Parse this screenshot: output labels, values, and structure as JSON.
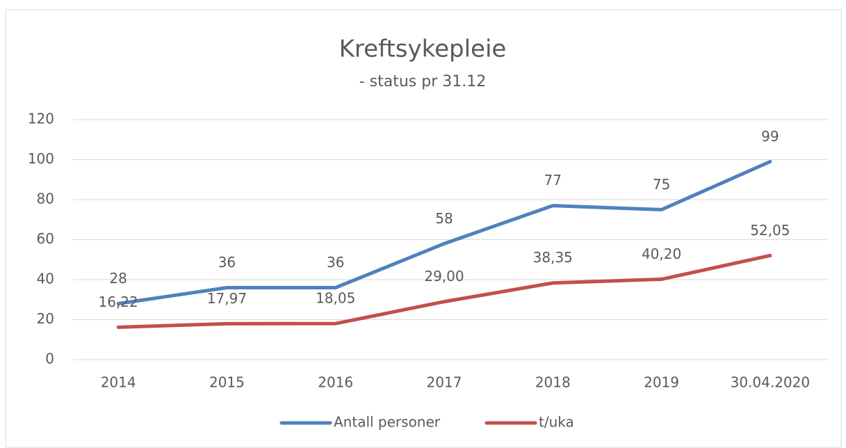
{
  "chart_data": {
    "type": "line",
    "title": "Kreftsykepleie",
    "subtitle": "- status pr 31.12",
    "categories": [
      "2014",
      "2015",
      "2016",
      "2017",
      "2018",
      "2019",
      "30.04.2020"
    ],
    "series": [
      {
        "name": "Antall personer",
        "color": "#4f81bd",
        "values": [
          28,
          36,
          36,
          58,
          77,
          75,
          99
        ]
      },
      {
        "name": "t/uka",
        "color": "#c0504d",
        "values": [
          16.22,
          17.97,
          18.05,
          29.0,
          38.35,
          40.2,
          52.05
        ],
        "value_labels": [
          "16,22",
          "17,97",
          "18,05",
          "29,00",
          "38,35",
          "40,20",
          "52,05"
        ]
      }
    ],
    "ylim": [
      0,
      120
    ],
    "yticks": [
      0,
      20,
      40,
      60,
      80,
      100,
      120
    ],
    "grid": true,
    "legend": "bottom"
  }
}
